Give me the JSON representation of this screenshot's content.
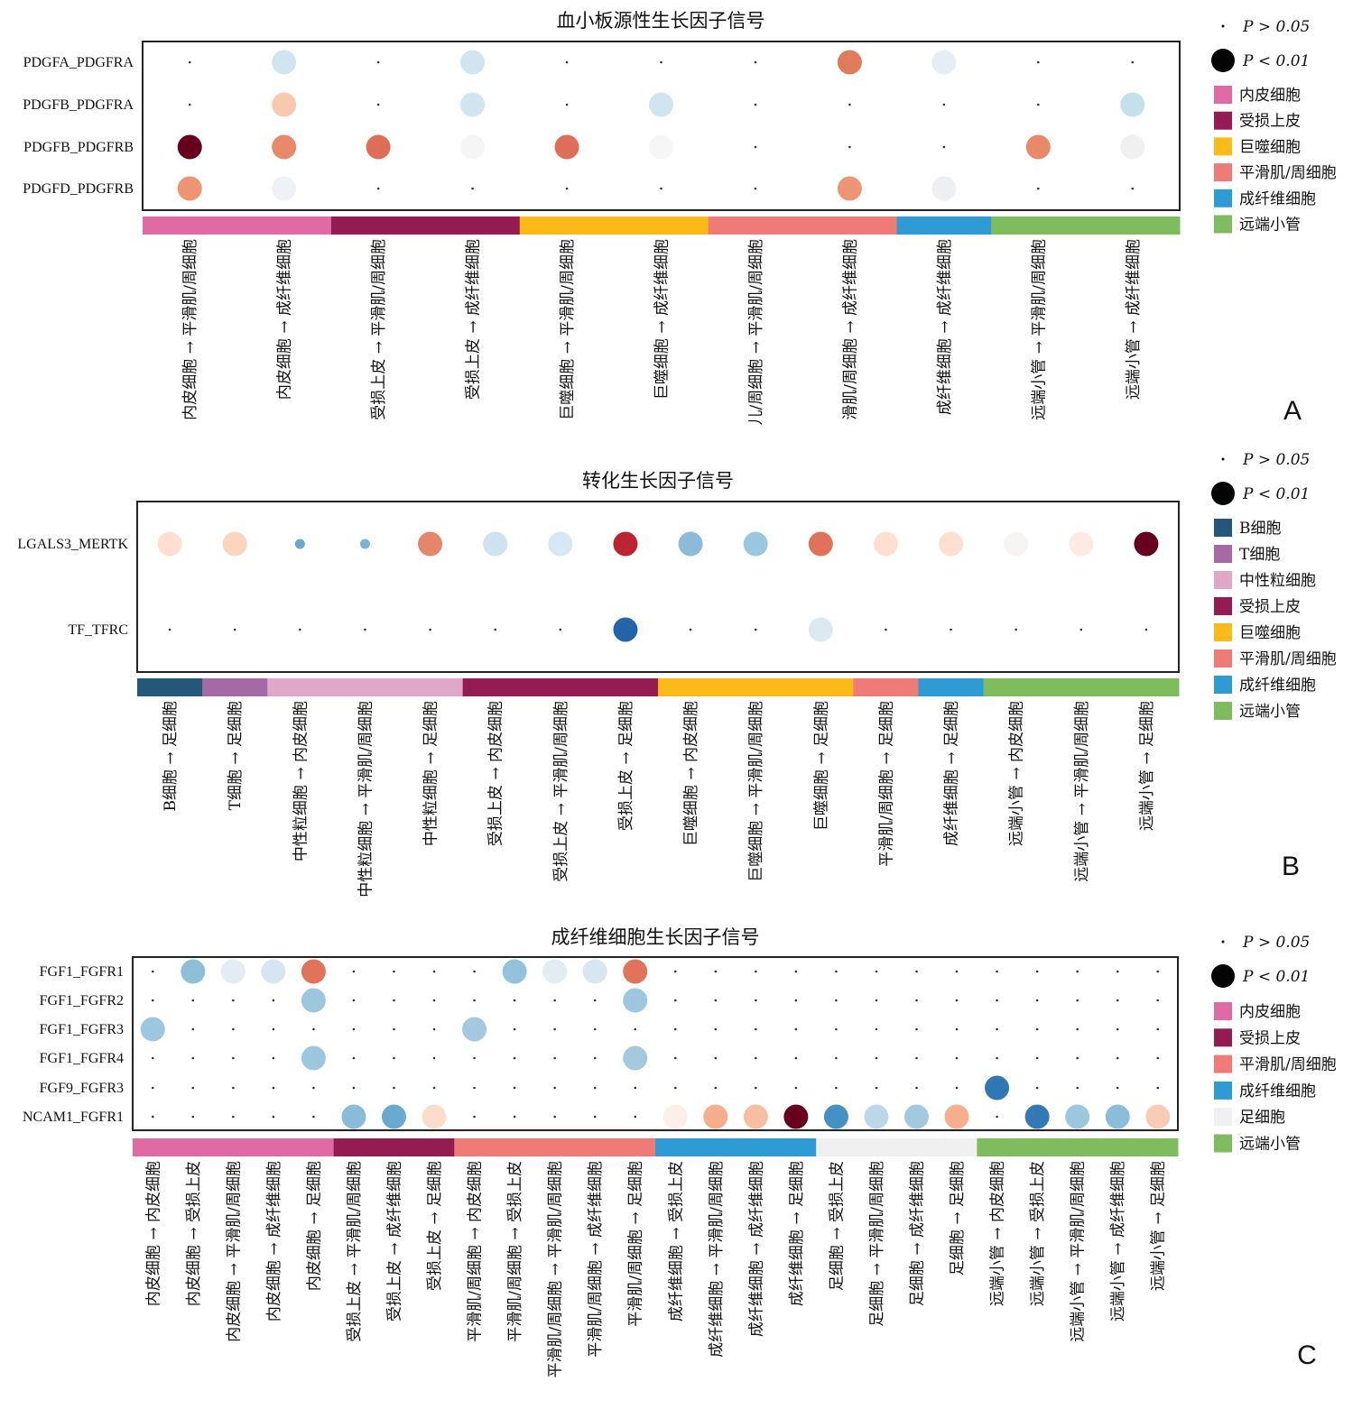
{
  "legend_colors": {
    "内皮细胞": "#e06aa3",
    "受损上皮": "#951b53",
    "巨噬细胞": "#fbba17",
    "平滑肌/周细胞": "#ef7b77",
    "成纤维细胞": "#2e9bd5",
    "远端小管": "#7fbc5d",
    "B细胞": "#24587a",
    "T细胞": "#a56aa5",
    "中性粒细胞": "#e0a8c8",
    "足细胞": "#f0f0f0"
  },
  "chart_data": [
    {
      "type": "dot",
      "panel_letter": "A",
      "title": "血小板源性生长因子信号",
      "size_legend": [
        "P > 0.05",
        "P < 0.01"
      ],
      "group_legend": [
        "内皮细胞",
        "受损上皮",
        "巨噬细胞",
        "平滑肌/周细胞",
        "成纤维细胞",
        "远端小管"
      ],
      "rows": [
        "PDGFA_PDGFRA",
        "PDGFB_PDGFRA",
        "PDGFB_PDGFRB",
        "PDGFD_PDGFRB"
      ],
      "columns": [
        "内皮细胞 → 平滑肌/周细胞",
        "内皮细胞 → 成纤维细胞",
        "受损上皮 → 平滑肌/周细胞",
        "受损上皮 → 成纤维细胞",
        "巨噬细胞 → 平滑肌/周细胞",
        "巨噬细胞 → 成纤维细胞",
        "儿/周细胞 → 平滑肌/周细胞",
        "滑肌/周细胞 → 成纤维细胞",
        "成纤维细胞 → 成纤维细胞",
        "远端小管 → 平滑肌/周细胞",
        "远端小管 → 成纤维细胞"
      ],
      "column_groups": [
        "内皮细胞",
        "内皮细胞",
        "受损上皮",
        "受损上皮",
        "巨噬细胞",
        "巨噬细胞",
        "平滑肌/周细胞",
        "平滑肌/周细胞",
        "成纤维细胞",
        "远端小管",
        "远端小管"
      ],
      "dots": [
        [
          null,
          [
            "#d1e5f0",
            "<0.01"
          ],
          null,
          [
            "#d1e5f0",
            "<0.01"
          ],
          null,
          null,
          null,
          [
            "#e07b5b",
            "<0.01"
          ],
          [
            "#e6eef5",
            "<0.01"
          ],
          null,
          null
        ],
        [
          null,
          [
            "#f9c9ad",
            "<0.01"
          ],
          null,
          [
            "#d1e5f0",
            "<0.01"
          ],
          null,
          [
            "#d1e5f0",
            "<0.01"
          ],
          null,
          null,
          null,
          null,
          [
            "#c5dfeb",
            "<0.01"
          ]
        ],
        [
          [
            "#67001f",
            "<0.01"
          ],
          [
            "#e8896a",
            "<0.01"
          ],
          [
            "#de6e58",
            "<0.01"
          ],
          [
            "#f5f5f5",
            "<0.01"
          ],
          [
            "#de6e58",
            "<0.01"
          ],
          [
            "#f6f6f6",
            "<0.01"
          ],
          null,
          null,
          null,
          [
            "#e8896a",
            "<0.01"
          ],
          [
            "#f0f0f0",
            "<0.01"
          ]
        ],
        [
          [
            "#ec9474",
            "<0.01"
          ],
          [
            "#eef2f6",
            "<0.01"
          ],
          null,
          null,
          null,
          null,
          null,
          [
            "#ec9474",
            "<0.01"
          ],
          [
            "#eeeff2",
            "<0.01"
          ],
          null,
          null
        ]
      ]
    },
    {
      "type": "dot",
      "panel_letter": "B",
      "title": "转化生长因子信号",
      "size_legend": [
        "P > 0.05",
        "P < 0.01"
      ],
      "group_legend": [
        "B细胞",
        "T细胞",
        "中性粒细胞",
        "受损上皮",
        "巨噬细胞",
        "平滑肌/周细胞",
        "成纤维细胞",
        "远端小管"
      ],
      "rows": [
        "LGALS3_MERTK",
        "TF_TFRC"
      ],
      "columns": [
        "B细胞 → 足细胞",
        "T细胞 → 足细胞",
        "中性粒细胞 → 内皮细胞",
        "中性粒细胞 → 平滑肌/周细胞",
        "中性粒细胞 → 足细胞",
        "受损上皮 → 内皮细胞",
        "受损上皮 → 平滑肌/周细胞",
        "受损上皮 → 足细胞",
        "巨噬细胞 → 内皮细胞",
        "巨噬细胞 → 平滑肌/周细胞",
        "巨噬细胞 → 足细胞",
        "平滑肌/周细胞 → 足细胞",
        "成纤维细胞 → 足细胞",
        "远端小管 → 内皮细胞",
        "远端小管 → 平滑肌/周细胞",
        "远端小管 → 足细胞"
      ],
      "column_groups": [
        "B细胞",
        "T细胞",
        "中性粒细胞",
        "中性粒细胞",
        "中性粒细胞",
        "受损上皮",
        "受损上皮",
        "受损上皮",
        "巨噬细胞",
        "巨噬细胞",
        "巨噬细胞",
        "平滑肌/周细胞",
        "成纤维细胞",
        "远端小管",
        "远端小管",
        "远端小管"
      ],
      "dots": [
        [
          [
            "#fde0d2",
            "<0.01"
          ],
          [
            "#fcd5bf",
            "<0.01"
          ],
          [
            "#6aa8d0",
            "0.01-0.05"
          ],
          [
            "#7bb3d6",
            "0.01-0.05"
          ],
          [
            "#e5866a",
            "<0.01"
          ],
          [
            "#cfe2ef",
            "<0.01"
          ],
          [
            "#d8e7f1",
            "<0.01"
          ],
          [
            "#bb2532",
            "<0.01"
          ],
          [
            "#8bbbd8",
            "<0.01"
          ],
          [
            "#99c7df",
            "<0.01"
          ],
          [
            "#df7258",
            "<0.01"
          ],
          [
            "#fde0d2",
            "<0.01"
          ],
          [
            "#fde0d2",
            "<0.01"
          ],
          [
            "#f7f5f4",
            "<0.01"
          ],
          [
            "#fceae3",
            "<0.01"
          ],
          [
            "#67001f",
            "<0.01"
          ]
        ],
        [
          null,
          null,
          null,
          null,
          null,
          null,
          null,
          [
            "#2365a8",
            "<0.01"
          ],
          null,
          null,
          [
            "#dde9f1",
            "<0.01"
          ],
          null,
          null,
          null,
          null,
          null
        ]
      ]
    },
    {
      "type": "dot",
      "panel_letter": "C",
      "title": "成纤维细胞生长因子信号",
      "size_legend": [
        "P > 0.05",
        "P < 0.01"
      ],
      "group_legend": [
        "内皮细胞",
        "受损上皮",
        "平滑肌/周细胞",
        "成纤维细胞",
        "足细胞",
        "远端小管"
      ],
      "rows": [
        "FGF1_FGFR1",
        "FGF1_FGFR2",
        "FGF1_FGFR3",
        "FGF1_FGFR4",
        "FGF9_FGFR3",
        "NCAM1_FGFR1"
      ],
      "columns": [
        "内皮细胞 → 内皮细胞",
        "内皮细胞 → 受损上皮",
        "内皮细胞 → 平滑肌/周细胞",
        "内皮细胞 → 成纤维细胞",
        "内皮细胞 → 足细胞",
        "受损上皮 → 平滑肌/周细胞",
        "受损上皮 → 成纤维细胞",
        "受损上皮 → 足细胞",
        "平滑肌/周细胞 → 内皮细胞",
        "平滑肌/周细胞 → 受损上皮",
        "平滑肌/周细胞 → 平滑肌/周细胞",
        "平滑肌/周细胞 → 成纤维细胞",
        "平滑肌/周细胞 → 足细胞",
        "成纤维细胞 → 受损上皮",
        "成纤维细胞 → 平滑肌/周细胞",
        "成纤维细胞 → 成纤维细胞",
        "成纤维细胞 → 足细胞",
        "足细胞 → 受损上皮",
        "足细胞 → 平滑肌/周细胞",
        "足细胞 → 成纤维细胞",
        "足细胞 → 足细胞",
        "远端小管 → 内皮细胞",
        "远端小管 → 受损上皮",
        "远端小管 → 平滑肌/周细胞",
        "远端小管 → 成纤维细胞",
        "远端小管 → 足细胞"
      ],
      "column_groups": [
        "内皮细胞",
        "内皮细胞",
        "内皮细胞",
        "内皮细胞",
        "内皮细胞",
        "受损上皮",
        "受损上皮",
        "受损上皮",
        "平滑肌/周细胞",
        "平滑肌/周细胞",
        "平滑肌/周细胞",
        "平滑肌/周细胞",
        "平滑肌/周细胞",
        "成纤维细胞",
        "成纤维细胞",
        "成纤维细胞",
        "成纤维细胞",
        "足细胞",
        "足细胞",
        "足细胞",
        "足细胞",
        "远端小管",
        "远端小管",
        "远端小管",
        "远端小管",
        "远端小管"
      ],
      "dots": [
        [
          null,
          [
            "#8dbfd9",
            "<0.01"
          ],
          [
            "#e3ecf3",
            "<0.01"
          ],
          [
            "#d6e6f0",
            "<0.01"
          ],
          [
            "#e0735a",
            "<0.01"
          ],
          null,
          null,
          null,
          null,
          [
            "#93c3dc",
            "<0.01"
          ],
          [
            "#e3ecf3",
            "<0.01"
          ],
          [
            "#d8e6f0",
            "<0.01"
          ],
          [
            "#e0735a",
            "<0.01"
          ],
          null,
          null,
          null,
          null,
          null,
          null,
          null,
          null,
          null,
          null,
          null,
          null,
          null
        ],
        [
          null,
          null,
          null,
          null,
          [
            "#9cc7df",
            "<0.01"
          ],
          null,
          null,
          null,
          null,
          null,
          null,
          null,
          [
            "#9cc7df",
            "<0.01"
          ],
          null,
          null,
          null,
          null,
          null,
          null,
          null,
          null,
          null,
          null,
          null,
          null,
          null
        ],
        [
          [
            "#9cc7df",
            "<0.01"
          ],
          null,
          null,
          null,
          null,
          null,
          null,
          null,
          [
            "#a4c8de",
            "<0.01"
          ],
          null,
          null,
          null,
          null,
          null,
          null,
          null,
          null,
          null,
          null,
          null,
          null,
          null,
          null,
          null,
          null,
          null
        ],
        [
          null,
          null,
          null,
          null,
          [
            "#9cc7df",
            "<0.01"
          ],
          null,
          null,
          null,
          null,
          null,
          null,
          null,
          [
            "#a4c8de",
            "<0.01"
          ],
          null,
          null,
          null,
          null,
          null,
          null,
          null,
          null,
          null,
          null,
          null,
          null,
          null
        ],
        [
          null,
          null,
          null,
          null,
          null,
          null,
          null,
          null,
          null,
          null,
          null,
          null,
          null,
          null,
          null,
          null,
          null,
          null,
          null,
          null,
          null,
          [
            "#3077b6",
            "<0.01"
          ],
          null,
          null,
          null,
          null
        ],
        [
          null,
          null,
          null,
          null,
          null,
          [
            "#8abcd9",
            "<0.01"
          ],
          [
            "#6aa9d0",
            "<0.01"
          ],
          [
            "#fcdccb",
            "<0.01"
          ],
          null,
          null,
          null,
          null,
          null,
          [
            "#fbefea",
            "<0.01"
          ],
          [
            "#f6ad8b",
            "<0.01"
          ],
          [
            "#f8bea1",
            "<0.01"
          ],
          [
            "#67001f",
            "<0.01"
          ],
          [
            "#4590c4",
            "<0.01"
          ],
          [
            "#bcd8e8",
            "<0.01"
          ],
          [
            "#a3c9df",
            "<0.01"
          ],
          [
            "#f6ae8d",
            "<0.01"
          ],
          null,
          [
            "#3479b4",
            "<0.01"
          ],
          [
            "#9cc7df",
            "<0.01"
          ],
          [
            "#8bbcda",
            "<0.01"
          ],
          [
            "#f9cdb5",
            "<0.01"
          ]
        ]
      ]
    }
  ]
}
